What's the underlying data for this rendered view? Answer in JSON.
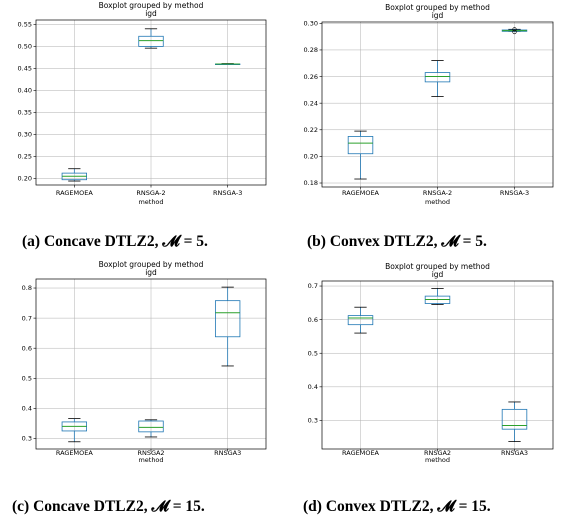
{
  "chart_data": [
    {
      "type": "boxplot",
      "title": "Boxplot grouped by method",
      "subtitle": "igd",
      "xlabel": "method",
      "categories": [
        "RAGEMOEA",
        "RNSGA-2",
        "RNSGA-3"
      ],
      "ylim": [
        0.185,
        0.56
      ],
      "yticks": [
        "0.20",
        "0.25",
        "0.30",
        "0.35",
        "0.40",
        "0.45",
        "0.50",
        "0.55"
      ],
      "grid": true,
      "boxes": [
        {
          "whislo": 0.194,
          "q1": 0.197,
          "med": 0.205,
          "q3": 0.212,
          "whishi": 0.222
        },
        {
          "whislo": 0.496,
          "q1": 0.5,
          "med": 0.513,
          "q3": 0.523,
          "whishi": 0.54
        },
        {
          "whislo": 0.459,
          "q1": 0.459,
          "med": 0.46,
          "q3": 0.46,
          "whishi": 0.461
        }
      ],
      "fliers": [
        [],
        [],
        []
      ],
      "caption": "(a) Concave DTLZ2, 𝓜 = 5."
    },
    {
      "type": "boxplot",
      "title": "Boxplot grouped by method",
      "subtitle": "igd",
      "xlabel": "method",
      "categories": [
        "RAGEMOEA",
        "RNSGA-2",
        "RNSGA-3"
      ],
      "ylim": [
        0.177,
        0.301
      ],
      "yticks": [
        "0.18",
        "0.20",
        "0.22",
        "0.24",
        "0.26",
        "0.28",
        "0.30"
      ],
      "grid": true,
      "boxes": [
        {
          "whislo": 0.183,
          "q1": 0.202,
          "med": 0.21,
          "q3": 0.215,
          "whishi": 0.219
        },
        {
          "whislo": 0.245,
          "q1": 0.256,
          "med": 0.26,
          "q3": 0.263,
          "whishi": 0.272
        },
        {
          "whislo": 0.294,
          "q1": 0.294,
          "med": 0.2945,
          "q3": 0.295,
          "whishi": 0.2955
        }
      ],
      "fliers": [
        [],
        [],
        [
          0.2935,
          0.2955
        ]
      ],
      "caption": "(b) Convex DTLZ2, 𝓜 = 5."
    },
    {
      "type": "boxplot",
      "title": "Boxplot grouped by method",
      "subtitle": "igd",
      "xlabel": "method",
      "categories": [
        "RAGEMOEA",
        "RNSGA2",
        "RNSGA3"
      ],
      "ylim": [
        0.265,
        0.83
      ],
      "yticks": [
        "0.3",
        "0.4",
        "0.5",
        "0.6",
        "0.7",
        "0.8"
      ],
      "grid": true,
      "boxes": [
        {
          "whislo": 0.289,
          "q1": 0.325,
          "med": 0.34,
          "q3": 0.355,
          "whishi": 0.366
        },
        {
          "whislo": 0.305,
          "q1": 0.322,
          "med": 0.337,
          "q3": 0.358,
          "whishi": 0.362
        },
        {
          "whislo": 0.541,
          "q1": 0.638,
          "med": 0.718,
          "q3": 0.758,
          "whishi": 0.803
        }
      ],
      "fliers": [
        [],
        [],
        []
      ],
      "caption": "(c) Concave DTLZ2, 𝓜 = 15."
    },
    {
      "type": "boxplot",
      "title": "Boxplot grouped by method",
      "subtitle": "igd",
      "xlabel": "method",
      "categories": [
        "RAGEMOEA",
        "RNSGA2",
        "RNSGA3"
      ],
      "ylim": [
        0.215,
        0.715
      ],
      "yticks": [
        "0.3",
        "0.4",
        "0.5",
        "0.6",
        "0.7"
      ],
      "grid": true,
      "boxes": [
        {
          "whislo": 0.56,
          "q1": 0.585,
          "med": 0.605,
          "q3": 0.612,
          "whishi": 0.637
        },
        {
          "whislo": 0.645,
          "q1": 0.648,
          "med": 0.66,
          "q3": 0.67,
          "whishi": 0.693
        },
        {
          "whislo": 0.237,
          "q1": 0.274,
          "med": 0.285,
          "q3": 0.333,
          "whishi": 0.355
        }
      ],
      "fliers": [
        [],
        [],
        []
      ],
      "caption": "(d) Convex DTLZ2, 𝓜 = 15."
    }
  ],
  "colors": {
    "box": "#1f77b4",
    "median": "#2ca02c",
    "whisker": "#000000",
    "grid": "#b0b0b0",
    "axis": "#000000"
  }
}
